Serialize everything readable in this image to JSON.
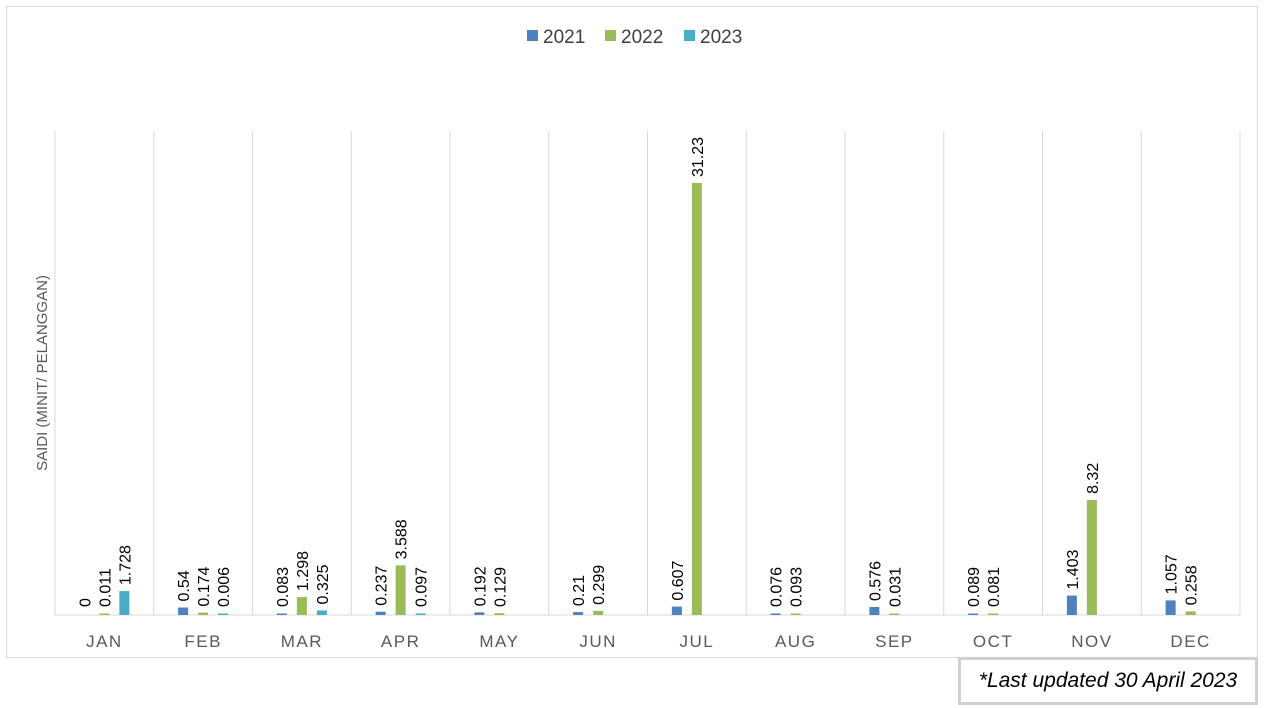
{
  "chart_data": {
    "type": "bar",
    "title": "",
    "xlabel": "",
    "ylabel": "SAIDI (MINIT/ PELANGGAN)",
    "categories": [
      "JAN",
      "FEB",
      "MAR",
      "APR",
      "MAY",
      "JUN",
      "JUL",
      "AUG",
      "SEP",
      "OCT",
      "NOV",
      "DEC"
    ],
    "series": [
      {
        "name": "2021",
        "color": "#4f81bd",
        "values": [
          0,
          0.54,
          0.083,
          0.237,
          0.192,
          0.21,
          0.607,
          0.076,
          0.576,
          0.089,
          1.403,
          1.057
        ]
      },
      {
        "name": "2022",
        "color": "#9bbb59",
        "values": [
          0.011,
          0.174,
          1.298,
          3.588,
          0.129,
          0.299,
          31.23,
          0.093,
          0.031,
          0.081,
          8.32,
          0.258
        ]
      },
      {
        "name": "2023",
        "color": "#4bacc6",
        "values": [
          1.728,
          0.006,
          0.325,
          0.097,
          null,
          null,
          null,
          null,
          null,
          null,
          null,
          null
        ]
      }
    ],
    "ylim": [
      0,
      35
    ],
    "legend": "top-center",
    "grid": "vertical category separators"
  },
  "footnote": "*Last updated 30 April 2023"
}
